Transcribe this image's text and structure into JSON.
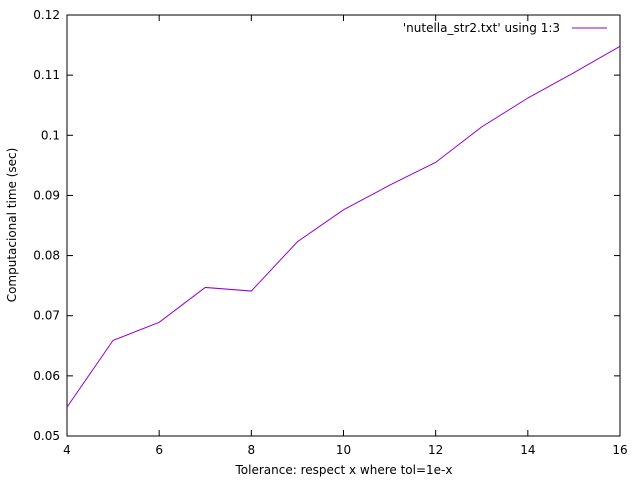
{
  "chart_data": {
    "type": "line",
    "title": "",
    "xlabel": "Tolerance:  respect x where tol=1e-x",
    "ylabel": "Computacional time (sec)",
    "xlim": [
      4,
      16
    ],
    "ylim": [
      0.05,
      0.12
    ],
    "x_ticks": [
      4,
      6,
      8,
      10,
      12,
      14,
      16
    ],
    "y_ticks": [
      0.05,
      0.06,
      0.07,
      0.08,
      0.09,
      0.1,
      0.11,
      0.12
    ],
    "x_tick_labels": [
      "4",
      "6",
      "8",
      "10",
      "12",
      "14",
      "16"
    ],
    "y_tick_labels": [
      "0.05",
      "0.06",
      "0.07",
      "0.08",
      "0.09",
      "0.1",
      "0.11",
      "0.12"
    ],
    "grid": false,
    "legend_position": "top-right",
    "series": [
      {
        "name": "'nutella_str2.txt' using 1:3",
        "color": "#9400d3",
        "x": [
          4,
          5,
          6,
          7,
          8,
          9,
          10,
          11,
          12,
          13,
          14,
          15,
          16
        ],
        "y": [
          0.0548,
          0.0659,
          0.0689,
          0.0747,
          0.0741,
          0.0823,
          0.0876,
          0.0917,
          0.0955,
          0.1014,
          0.1062,
          0.1104,
          0.1148
        ]
      }
    ]
  }
}
